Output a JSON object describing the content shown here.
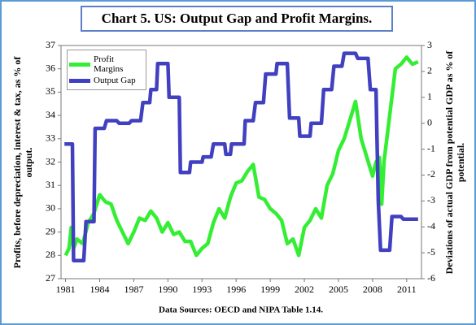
{
  "chart_data": {
    "type": "line",
    "title": "Chart  5. US: Output Gap and Profit Margins.",
    "y_label": [
      "Profits, before depreciation, interest & tax, as % of",
      "output."
    ],
    "y2_label": [
      "Deviations of actual GDP from potential GDP as % of",
      "potential."
    ],
    "source": "Data Sources: OECD and NIPA Table 1.14.",
    "xlim": [
      1980.6,
      2012.3
    ],
    "xticks": [
      1981,
      1984,
      1987,
      1990,
      1993,
      1996,
      1999,
      2002,
      2005,
      2008,
      2011
    ],
    "ylim": [
      27,
      37
    ],
    "yticks": [
      27,
      28,
      29,
      30,
      31,
      32,
      33,
      34,
      35,
      36,
      37
    ],
    "y2lim": [
      -6,
      3
    ],
    "y2ticks": [
      -6,
      -5,
      -4,
      -3,
      -2,
      -1,
      0,
      1,
      2,
      3
    ],
    "legend": "top-left",
    "series": [
      {
        "name": "Profit Margins",
        "color": "#33ee33",
        "x": [
          1981,
          1981.3,
          1981.5,
          1981.7,
          1982,
          1982.5,
          1983,
          1983.5,
          1984,
          1984.5,
          1985,
          1985.5,
          1986,
          1986.5,
          1987,
          1987.5,
          1988,
          1988.5,
          1989,
          1989.5,
          1990,
          1990.5,
          1991,
          1991.5,
          1992,
          1992.5,
          1993,
          1993.5,
          1994,
          1994.5,
          1995,
          1995.5,
          1996,
          1996.5,
          1997,
          1997.5,
          1998,
          1998.5,
          1999,
          1999.5,
          2000,
          2000.5,
          2001,
          2001.5,
          2002,
          2002.5,
          2003,
          2003.5,
          2004,
          2004.5,
          2005,
          2005.5,
          2006,
          2006.5,
          2007,
          2007.5,
          2008,
          2008.3,
          2008.6,
          2008.8,
          2009,
          2009.5,
          2010,
          2010.5,
          2011,
          2011.5,
          2012
        ],
        "values": [
          28.0,
          28.3,
          29.2,
          28.3,
          28.7,
          28.5,
          29.4,
          29.8,
          30.6,
          30.3,
          30.2,
          29.5,
          29.0,
          28.5,
          29.0,
          29.6,
          29.5,
          29.9,
          29.6,
          29.0,
          29.4,
          28.9,
          29.0,
          28.6,
          28.6,
          28.0,
          28.3,
          28.5,
          29.4,
          30.0,
          29.6,
          30.5,
          31.1,
          31.2,
          31.6,
          31.9,
          30.5,
          30.4,
          30.0,
          29.8,
          29.5,
          28.5,
          28.7,
          28.0,
          29.2,
          29.5,
          30.0,
          29.6,
          31.0,
          31.5,
          32.5,
          33.0,
          33.8,
          34.6,
          33.0,
          32.2,
          31.4,
          32.0,
          32.2,
          30.2,
          32.0,
          34.0,
          36.0,
          36.2,
          36.5,
          36.2,
          36.3
        ]
      },
      {
        "name": "Output Gap",
        "color": "#4040c0",
        "axis": "y2",
        "x": [
          1980.9,
          1981.6,
          1981.7,
          1982.6,
          1982.8,
          1983.5,
          1983.6,
          1984.4,
          1984.6,
          1985.5,
          1985.7,
          1986.6,
          1986.8,
          1987.6,
          1987.8,
          1988.4,
          1988.5,
          1989,
          1989.1,
          1990,
          1990.1,
          1991,
          1991.1,
          1991.9,
          1992,
          1993,
          1993.1,
          1993.8,
          1994,
          1995,
          1995.1,
          1995.5,
          1995.6,
          1996.7,
          1996.8,
          1997.5,
          1997.7,
          1998.4,
          1998.6,
          1999.5,
          1999.6,
          2000.5,
          2000.7,
          2001.5,
          2001.6,
          2002.5,
          2002.6,
          2003.5,
          2003.7,
          2004.4,
          2004.6,
          2005.3,
          2005.5,
          2006.5,
          2006.7,
          2007.6,
          2007.8,
          2008.3,
          2008.5,
          2008.7,
          2009.5,
          2009.7,
          2010.5,
          2010.7,
          2012
        ],
        "values": [
          -0.8,
          -0.8,
          -5.3,
          -5.3,
          -3.8,
          -3.8,
          -0.2,
          -0.2,
          0.1,
          0.1,
          0.0,
          0.0,
          0.1,
          0.1,
          0.8,
          0.8,
          1.3,
          1.3,
          2.3,
          2.3,
          1.0,
          1.0,
          -1.9,
          -1.9,
          -1.5,
          -1.5,
          -1.3,
          -1.3,
          -0.8,
          -0.8,
          -1.2,
          -1.2,
          -0.8,
          -0.8,
          0.1,
          0.1,
          0.8,
          0.8,
          1.9,
          1.9,
          2.3,
          2.3,
          0.2,
          0.2,
          -0.5,
          -0.5,
          0.0,
          0.0,
          1.3,
          1.3,
          2.2,
          2.2,
          2.7,
          2.7,
          2.5,
          2.5,
          1.3,
          1.3,
          -3.0,
          -4.9,
          -4.9,
          -3.6,
          -3.6,
          -3.7,
          -3.7
        ]
      }
    ]
  }
}
